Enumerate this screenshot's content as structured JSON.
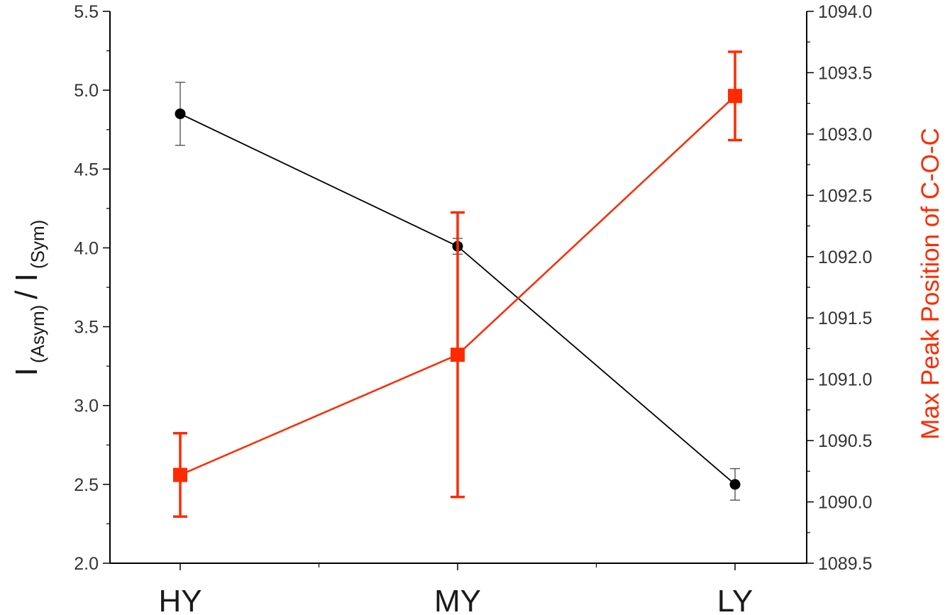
{
  "chart_data": {
    "type": "line",
    "categories": [
      "HY",
      "MY",
      "LY"
    ],
    "series": [
      {
        "axis": "left",
        "color": "#000000",
        "marker": "circle",
        "values": [
          4.85,
          4.01,
          2.5
        ],
        "errors": [
          0.2,
          0.05,
          0.1
        ]
      },
      {
        "axis": "right",
        "color": "#ff2a00",
        "marker": "square",
        "values": [
          1090.22,
          1091.2,
          1093.31
        ],
        "errors": [
          0.34,
          1.16,
          0.36
        ]
      }
    ],
    "y_axis": {
      "label_main": "I",
      "label_sub1": "(Asym)",
      "label_sep": "/ I",
      "label_sub2": "(Sym)",
      "ylim": [
        2.0,
        5.5
      ],
      "ticks": [
        "2.0",
        "2.5",
        "3.0",
        "3.5",
        "4.0",
        "4.5",
        "5.0",
        "5.5"
      ]
    },
    "y2_axis": {
      "label": "Max Peak Position of C-O-C",
      "color": "#ff2a00",
      "ylim": [
        1089.5,
        1094.0
      ],
      "ticks": [
        "1089.5",
        "1090.0",
        "1090.5",
        "1091.0",
        "1091.5",
        "1092.0",
        "1092.5",
        "1093.0",
        "1093.5",
        "1094.0"
      ]
    },
    "grid": false,
    "legend": "none"
  }
}
